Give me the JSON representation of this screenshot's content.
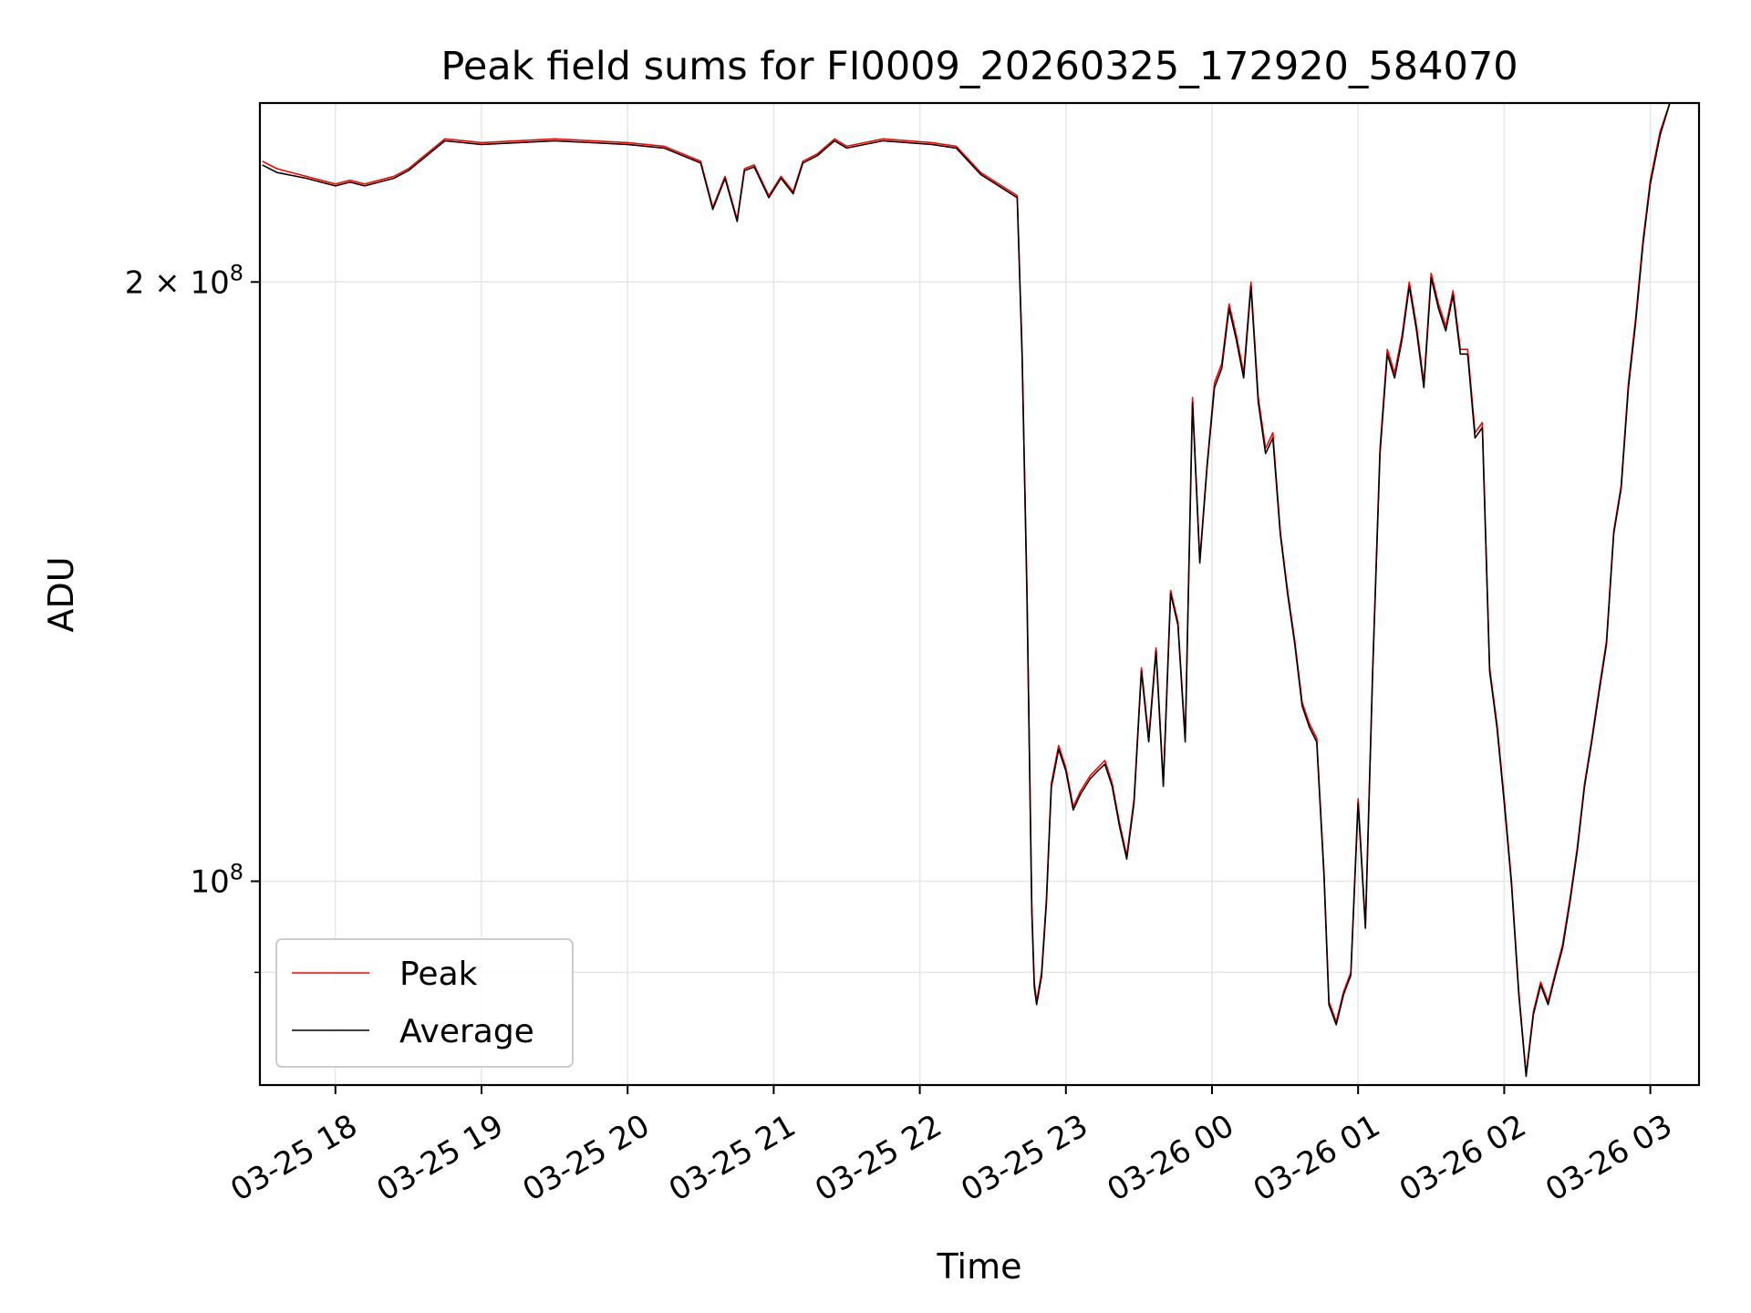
{
  "chart_data": {
    "type": "line",
    "title": "Peak field sums for FI0009_20260325_172920_584070",
    "xlabel": "Time",
    "ylabel": "ADU",
    "yscale": "log",
    "grid": true,
    "legend_placement": "lower-left",
    "x_range": [
      "03-25 17:29",
      "03-26 03:20"
    ],
    "ylim": [
      79000000,
      246000000
    ],
    "x_ticks": [
      "03-25 18",
      "03-25 19",
      "03-25 20",
      "03-25 21",
      "03-25 22",
      "03-25 23",
      "03-26 00",
      "03-26 01",
      "03-26 02",
      "03-26 03"
    ],
    "y_major_ticks": [
      {
        "value": 100000000,
        "base": "10",
        "exp": "8",
        "mult": ""
      },
      {
        "value": 200000000,
        "base": "10",
        "exp": "8",
        "mult": "2 × "
      }
    ],
    "y_minor_ticks": [
      90000000
    ],
    "series": [
      {
        "name": "Peak",
        "color": "#ff0000",
        "x": [
          "03-25 17:30",
          "03-25 17:36",
          "03-25 17:48",
          "03-25 18:00",
          "03-25 18:06",
          "03-25 18:12",
          "03-25 18:24",
          "03-25 18:30",
          "03-25 18:45",
          "03-25 19:00",
          "03-25 19:30",
          "03-25 20:00",
          "03-25 20:15",
          "03-25 20:30",
          "03-25 20:35",
          "03-25 20:40",
          "03-25 20:45",
          "03-25 20:48",
          "03-25 20:52",
          "03-25 20:58",
          "03-25 21:03",
          "03-25 21:08",
          "03-25 21:12",
          "03-25 21:18",
          "03-25 21:25",
          "03-25 21:30",
          "03-25 21:45",
          "03-25 22:05",
          "03-25 22:15",
          "03-25 22:25",
          "03-25 22:40",
          "03-25 22:42",
          "03-25 22:44",
          "03-25 22:46",
          "03-25 22:47",
          "03-25 22:48",
          "03-25 22:50",
          "03-25 22:52",
          "03-25 22:54",
          "03-25 22:57",
          "03-25 23:00",
          "03-25 23:03",
          "03-25 23:06",
          "03-25 23:10",
          "03-25 23:13",
          "03-25 23:16",
          "03-25 23:19",
          "03-25 23:22",
          "03-25 23:25",
          "03-25 23:28",
          "03-25 23:31",
          "03-25 23:34",
          "03-25 23:37",
          "03-25 23:40",
          "03-25 23:43",
          "03-25 23:46",
          "03-25 23:49",
          "03-25 23:52",
          "03-25 23:55",
          "03-25 23:58",
          "03-26 00:01",
          "03-26 00:04",
          "03-26 00:07",
          "03-26 00:10",
          "03-26 00:13",
          "03-26 00:16",
          "03-26 00:19",
          "03-26 00:22",
          "03-26 00:25",
          "03-26 00:28",
          "03-26 00:31",
          "03-26 00:34",
          "03-26 00:37",
          "03-26 00:40",
          "03-26 00:43",
          "03-26 00:46",
          "03-26 00:48",
          "03-26 00:51",
          "03-26 00:54",
          "03-26 00:57",
          "03-26 01:00",
          "03-26 01:03",
          "03-26 01:06",
          "03-26 01:09",
          "03-26 01:12",
          "03-26 01:15",
          "03-26 01:18",
          "03-26 01:21",
          "03-26 01:24",
          "03-26 01:27",
          "03-26 01:30",
          "03-26 01:33",
          "03-26 01:36",
          "03-26 01:39",
          "03-26 01:42",
          "03-26 01:45",
          "03-26 01:48",
          "03-26 01:51",
          "03-26 01:54",
          "03-26 01:57",
          "03-26 02:00",
          "03-26 02:03",
          "03-26 02:06",
          "03-26 02:09",
          "03-26 02:12",
          "03-26 02:15",
          "03-26 02:18",
          "03-26 02:21",
          "03-26 02:24",
          "03-26 02:27",
          "03-26 02:30",
          "03-26 02:33",
          "03-26 02:36",
          "03-26 02:39",
          "03-26 02:42",
          "03-26 02:45",
          "03-26 02:48",
          "03-26 02:51",
          "03-26 02:54",
          "03-26 02:57",
          "03-26 03:00",
          "03-26 03:04",
          "03-26 03:08",
          "03-26 03:12",
          "03-26 03:16",
          "03-26 03:20"
        ],
        "values": [
          230000000,
          228000000,
          226000000,
          224000000,
          225000000,
          224000000,
          226000000,
          228000000,
          236000000,
          235000000,
          236000000,
          235000000,
          234000000,
          230000000,
          218000000,
          226000000,
          215000000,
          228000000,
          229000000,
          221000000,
          226000000,
          222000000,
          230000000,
          232000000,
          236000000,
          234000000,
          236000000,
          235000000,
          234000000,
          227000000,
          221000000,
          185000000,
          140000000,
          97000000,
          89000000,
          87000000,
          90000000,
          98000000,
          112000000,
          117000000,
          114000000,
          109000000,
          111000000,
          113000000,
          114000000,
          115000000,
          112000000,
          107000000,
          103000000,
          110000000,
          128000000,
          118000000,
          131000000,
          112000000,
          140000000,
          135000000,
          118000000,
          175000000,
          145000000,
          162000000,
          178000000,
          182000000,
          195000000,
          188000000,
          180000000,
          200000000,
          175000000,
          165000000,
          168000000,
          150000000,
          140000000,
          132000000,
          123000000,
          120000000,
          118000000,
          101000000,
          87000000,
          85000000,
          88000000,
          90000000,
          110000000,
          95000000,
          128000000,
          165000000,
          185000000,
          180000000,
          188000000,
          200000000,
          190000000,
          178000000,
          202000000,
          195000000,
          190000000,
          198000000,
          185000000,
          185000000,
          168000000,
          170000000,
          128000000,
          120000000,
          110000000,
          100000000,
          88000000,
          80000000,
          86000000,
          89000000,
          87000000,
          90000000,
          93000000,
          98000000,
          104000000,
          112000000,
          118000000,
          125000000,
          132000000,
          150000000,
          158000000,
          178000000,
          192000000,
          210000000,
          225000000,
          238000000,
          246000000,
          246000000,
          246000000,
          246000000
        ]
      },
      {
        "name": "Average",
        "color": "#000000",
        "x": [
          "03-25 17:30",
          "03-25 17:36",
          "03-25 17:48",
          "03-25 18:00",
          "03-25 18:06",
          "03-25 18:12",
          "03-25 18:24",
          "03-25 18:30",
          "03-25 18:45",
          "03-25 19:00",
          "03-25 19:30",
          "03-25 20:00",
          "03-25 20:15",
          "03-25 20:30",
          "03-25 20:35",
          "03-25 20:40",
          "03-25 20:45",
          "03-25 20:48",
          "03-25 20:52",
          "03-25 20:58",
          "03-25 21:03",
          "03-25 21:08",
          "03-25 21:12",
          "03-25 21:18",
          "03-25 21:25",
          "03-25 21:30",
          "03-25 21:45",
          "03-25 22:05",
          "03-25 22:15",
          "03-25 22:25",
          "03-25 22:40",
          "03-25 22:42",
          "03-25 22:44",
          "03-25 22:46",
          "03-25 22:47",
          "03-25 22:48",
          "03-25 22:50",
          "03-25 22:52",
          "03-25 22:54",
          "03-25 22:57",
          "03-25 23:00",
          "03-25 23:03",
          "03-25 23:06",
          "03-25 23:10",
          "03-25 23:13",
          "03-25 23:16",
          "03-25 23:19",
          "03-25 23:22",
          "03-25 23:25",
          "03-25 23:28",
          "03-25 23:31",
          "03-25 23:34",
          "03-25 23:37",
          "03-25 23:40",
          "03-25 23:43",
          "03-25 23:46",
          "03-25 23:49",
          "03-25 23:52",
          "03-25 23:55",
          "03-25 23:58",
          "03-26 00:01",
          "03-26 00:04",
          "03-26 00:07",
          "03-26 00:10",
          "03-26 00:13",
          "03-26 00:16",
          "03-26 00:19",
          "03-26 00:22",
          "03-26 00:25",
          "03-26 00:28",
          "03-26 00:31",
          "03-26 00:34",
          "03-26 00:37",
          "03-26 00:40",
          "03-26 00:43",
          "03-26 00:46",
          "03-26 00:48",
          "03-26 00:51",
          "03-26 00:54",
          "03-26 00:57",
          "03-26 01:00",
          "03-26 01:03",
          "03-26 01:06",
          "03-26 01:09",
          "03-26 01:12",
          "03-26 01:15",
          "03-26 01:18",
          "03-26 01:21",
          "03-26 01:24",
          "03-26 01:27",
          "03-26 01:30",
          "03-26 01:33",
          "03-26 01:36",
          "03-26 01:39",
          "03-26 01:42",
          "03-26 01:45",
          "03-26 01:48",
          "03-26 01:51",
          "03-26 01:54",
          "03-26 01:57",
          "03-26 02:00",
          "03-26 02:03",
          "03-26 02:06",
          "03-26 02:09",
          "03-26 02:12",
          "03-26 02:15",
          "03-26 02:18",
          "03-26 02:21",
          "03-26 02:24",
          "03-26 02:27",
          "03-26 02:30",
          "03-26 02:33",
          "03-26 02:36",
          "03-26 02:39",
          "03-26 02:42",
          "03-26 02:45",
          "03-26 02:48",
          "03-26 02:51",
          "03-26 02:54",
          "03-26 02:57",
          "03-26 03:00",
          "03-26 03:04",
          "03-26 03:08",
          "03-26 03:12",
          "03-26 03:16",
          "03-26 03:20"
        ],
        "values": [
          229000000,
          227000000,
          225500000,
          223500000,
          224500000,
          223500000,
          225500000,
          227500000,
          235500000,
          234500000,
          235500000,
          234500000,
          233500000,
          229500000,
          217500000,
          225500000,
          214500000,
          227500000,
          228500000,
          220500000,
          225500000,
          221500000,
          229500000,
          231500000,
          235500000,
          233500000,
          235500000,
          234500000,
          233500000,
          226500000,
          220500000,
          184000000,
          139000000,
          96500000,
          88500000,
          86700000,
          89600000,
          97500000,
          111500000,
          116500000,
          113600000,
          108600000,
          110600000,
          112600000,
          113600000,
          114500000,
          111600000,
          106600000,
          102600000,
          109500000,
          127500000,
          117500000,
          130500000,
          111600000,
          139500000,
          134500000,
          117500000,
          174000000,
          144500000,
          161500000,
          177000000,
          181000000,
          194000000,
          187000000,
          179000000,
          199000000,
          174000000,
          164000000,
          167000000,
          149500000,
          139500000,
          131500000,
          122500000,
          119500000,
          117500000,
          100600000,
          86700000,
          84700000,
          87700000,
          89700000,
          109500000,
          94700000,
          127500000,
          164000000,
          184000000,
          179000000,
          187000000,
          199000000,
          189000000,
          177000000,
          201000000,
          194000000,
          189000000,
          197000000,
          184000000,
          184000000,
          167000000,
          169000000,
          127500000,
          119500000,
          109500000,
          99600000,
          87700000,
          79800000,
          85700000,
          88700000,
          86700000,
          89700000,
          92600000,
          97600000,
          103600000,
          111600000,
          117600000,
          124500000,
          131500000,
          149500000,
          157500000,
          177000000,
          191000000,
          209000000,
          224000000,
          237000000,
          246000000,
          246000000,
          246000000,
          246000000
        ]
      }
    ]
  }
}
